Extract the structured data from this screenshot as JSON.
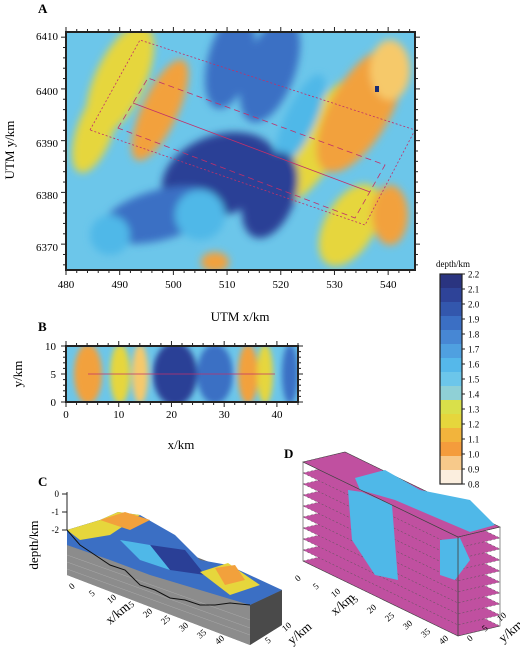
{
  "colors": {
    "deep": "#2a3f96",
    "mid": "#3b6fc4",
    "light": "#4fb8e8",
    "sky": "#6cc6ea",
    "yellow": "#e6d63c",
    "orange": "#f2a13c",
    "light_orange": "#f6c96a",
    "magenta": "#c050a0",
    "frame": "#222222"
  },
  "panels": {
    "a": {
      "letter": "A",
      "xlabel": "UTM x/km",
      "ylabel": "UTM y/km",
      "xticks": [
        "480",
        "490",
        "500",
        "510",
        "520",
        "530",
        "540"
      ],
      "yticks": [
        "6370",
        "6380",
        "6390",
        "6400",
        "6410"
      ],
      "xlim": [
        480,
        545
      ],
      "ylim": [
        6365,
        6411
      ]
    },
    "b": {
      "letter": "B",
      "xlabel": "x/km",
      "ylabel": "y/km",
      "xticks": [
        "0",
        "10",
        "20",
        "30",
        "40"
      ],
      "yticks": [
        "0",
        "5",
        "10"
      ],
      "xlim": [
        0,
        44
      ],
      "ylim": [
        0,
        10
      ]
    },
    "c": {
      "letter": "C",
      "zlabel": "depth/km",
      "xlabel": "x/km",
      "ylabel": "y/km",
      "zticks": [
        "0",
        "-1",
        "-2"
      ],
      "xticks": [
        "0",
        "5",
        "10",
        "15",
        "20",
        "25",
        "30",
        "35",
        "40"
      ],
      "yticks": [
        "5",
        "10"
      ]
    },
    "d": {
      "letter": "D",
      "xlabel": "x/km",
      "ylabel": "y/km",
      "xticks": [
        "0",
        "5",
        "10",
        "15",
        "20",
        "25",
        "30",
        "35",
        "40"
      ],
      "yticks": [
        "0",
        "5",
        "10"
      ]
    }
  },
  "chart_data": {
    "type": "heatmap",
    "colorbar": {
      "title": "depth/km",
      "ticks": [
        "2.2",
        "2.1",
        "2.0",
        "1.9",
        "1.8",
        "1.7",
        "1.6",
        "1.5",
        "1.4",
        "1.3",
        "1.2",
        "1.1",
        "1.0",
        "0.9",
        "0.8"
      ],
      "range": [
        0.8,
        2.2
      ],
      "colors": [
        "#2a3480",
        "#2e4398",
        "#3357ad",
        "#3b6fc4",
        "#4787d4",
        "#4fa0e0",
        "#55b8ea",
        "#6cc6ea",
        "#8fd0d6",
        "#d9e04a",
        "#e6d63c",
        "#f2b43c",
        "#f49c3c",
        "#f7c98a",
        "#fbeede"
      ]
    }
  }
}
